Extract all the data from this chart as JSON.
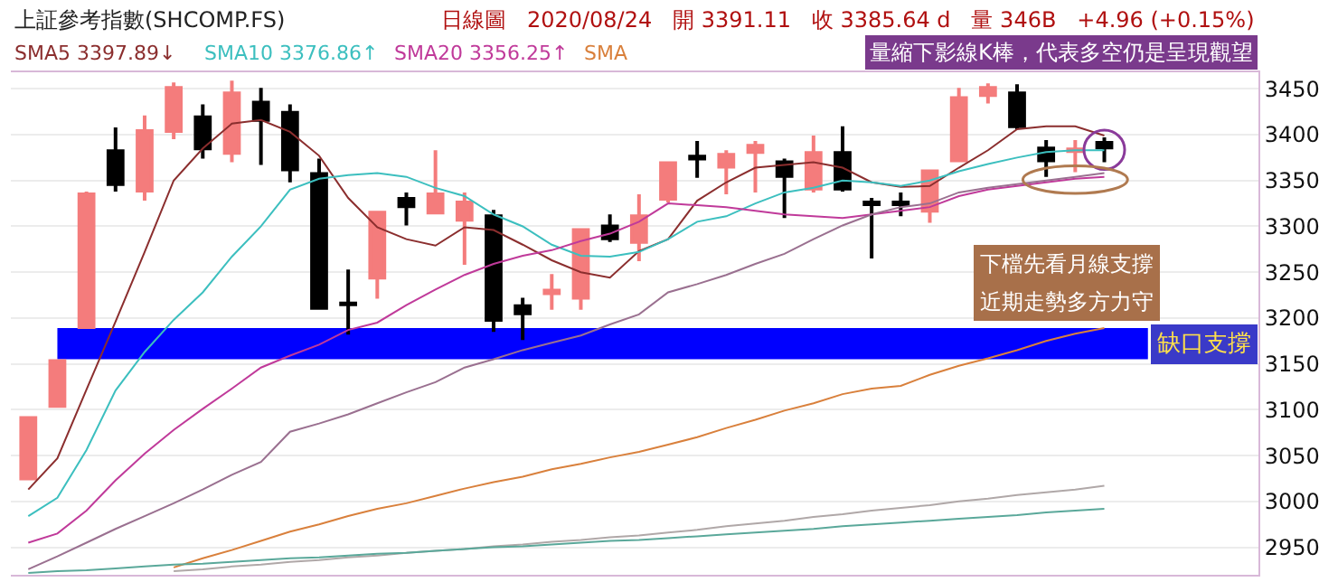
{
  "chart_data": {
    "type": "candlestick",
    "title": "上証參考指數(SHCOMP.FS)",
    "subtitle": "日線圖   2020/08/24   開 3391.11   收 3385.64 d   量 346B   +4.96 (+0.15%)",
    "categories": [
      null,
      null,
      null,
      null,
      null,
      null,
      null,
      null,
      null,
      null,
      null,
      null,
      null,
      null,
      null,
      null,
      null,
      null,
      null,
      null,
      null,
      null,
      null,
      null,
      null,
      null,
      null,
      null,
      null,
      null,
      null,
      null,
      null,
      null,
      null,
      null,
      null,
      null
    ],
    "ohlc": [
      [
        3025,
        3092,
        3024,
        3091
      ],
      [
        3104,
        3154,
        3103,
        3153
      ],
      [
        3190,
        3338,
        3189,
        3335
      ],
      [
        3382,
        3408,
        3338,
        3346
      ],
      [
        3339,
        3421,
        3328,
        3404
      ],
      [
        3404,
        3457,
        3395,
        3451
      ],
      [
        3419,
        3433,
        3374,
        3385
      ],
      [
        3380,
        3459,
        3370,
        3445
      ],
      [
        3435,
        3451,
        3367,
        3416
      ],
      [
        3424,
        3433,
        3348,
        3362
      ],
      [
        3357,
        3374,
        3210,
        3211
      ],
      [
        3216,
        3253,
        3182,
        3215
      ],
      [
        3244,
        3316,
        3221,
        3315
      ],
      [
        3330,
        3337,
        3301,
        3322
      ],
      [
        3315,
        3383,
        3313,
        3335
      ],
      [
        3307,
        3337,
        3258,
        3326
      ],
      [
        3311,
        3318,
        3185,
        3198
      ],
      [
        3213,
        3222,
        3176,
        3205
      ],
      [
        3227,
        3248,
        3209,
        3230
      ],
      [
        3222,
        3297,
        3209,
        3296
      ],
      [
        3300,
        3313,
        3283,
        3287
      ],
      [
        3283,
        3335,
        3262,
        3311
      ],
      [
        3330,
        3370,
        3326,
        3369
      ],
      [
        3376,
        3393,
        3353,
        3374
      ],
      [
        3365,
        3383,
        3335,
        3378
      ],
      [
        3381,
        3393,
        3337,
        3388
      ],
      [
        3370,
        3374,
        3309,
        3355
      ],
      [
        3341,
        3399,
        3337,
        3380
      ],
      [
        3380,
        3409,
        3338,
        3341
      ],
      [
        3326,
        3331,
        3265,
        3324
      ],
      [
        3326,
        3337,
        3311,
        3324
      ],
      [
        3317,
        3362,
        3304,
        3360
      ],
      [
        3372,
        3451,
        3370,
        3440
      ],
      [
        3443,
        3456,
        3434,
        3451
      ],
      [
        3445,
        3455,
        3406,
        3409
      ],
      [
        3385,
        3394,
        3354,
        3372
      ],
      [
        3382,
        3394,
        3359,
        3384
      ],
      [
        3391,
        3397,
        3370,
        3386
      ]
    ],
    "colors": [
      "#f47c7c",
      "#f47c7c",
      "#f47c7c",
      "#000000",
      "#f47c7c",
      "#f47c7c",
      "#000000",
      "#f47c7c",
      "#000000",
      "#000000",
      "#000000",
      "#000000",
      "#f47c7c",
      "#000000",
      "#f47c7c",
      "#f47c7c",
      "#000000",
      "#000000",
      "#f47c7c",
      "#f47c7c",
      "#000000",
      "#f47c7c",
      "#f47c7c",
      "#000000",
      "#f47c7c",
      "#f47c7c",
      "#000000",
      "#f47c7c",
      "#000000",
      "#000000",
      "#000000",
      "#f47c7c",
      "#f47c7c",
      "#f47c7c",
      "#000000",
      "#000000",
      "#f47c7c",
      "#000000"
    ],
    "series": [
      {
        "type": "line",
        "name": "SMA5 3397.89↓",
        "color": "#8b2e2e",
        "values": [
          3013,
          3047,
          3122,
          3196,
          3272,
          3350,
          3385,
          3412,
          3416,
          3403,
          3377,
          3331,
          3299,
          3286,
          3279,
          3299,
          3296,
          3280,
          3263,
          3250,
          3244,
          3273,
          3286,
          3328,
          3348,
          3364,
          3367,
          3370,
          3364,
          3348,
          3343,
          3344,
          3364,
          3383,
          3406,
          3409,
          3409,
          3399
        ]
      },
      {
        "type": "line",
        "name": "SMA10 3376.86↑",
        "color": "#3cbfbf",
        "values": [
          2984,
          3004,
          3056,
          3121,
          3163,
          3198,
          3228,
          3267,
          3300,
          3340,
          3352,
          3356,
          3358,
          3354,
          3342,
          3333,
          3313,
          3300,
          3280,
          3268,
          3267,
          3272,
          3286,
          3305,
          3311,
          3325,
          3337,
          3342,
          3350,
          3348,
          3344,
          3350,
          3360,
          3368,
          3375,
          3381,
          3383,
          3383
        ]
      },
      {
        "type": "line",
        "name": "SMA20 3356.25↑",
        "color": "#c03a9a",
        "values": [
          2955,
          2965,
          2990,
          3023,
          3052,
          3078,
          3101,
          3123,
          3146,
          3159,
          3171,
          3187,
          3195,
          3214,
          3231,
          3247,
          3259,
          3268,
          3274,
          3284,
          3292,
          3305,
          3325,
          3323,
          3321,
          3317,
          3313,
          3311,
          3309,
          3313,
          3317,
          3321,
          3333,
          3340,
          3344,
          3348,
          3352,
          3354
        ]
      },
      {
        "type": "line",
        "name": "SMA",
        "color": "#d9803c",
        "values": [
          null,
          null,
          null,
          null,
          null,
          2928,
          2938,
          2947,
          2957,
          2967,
          2975,
          2984,
          2992,
          2998,
          3006,
          3014,
          3021,
          3027,
          3035,
          3041,
          3048,
          3054,
          3062,
          3070,
          3080,
          3089,
          3099,
          3107,
          3117,
          3123,
          3126,
          3138,
          3148,
          3156,
          3165,
          3175,
          3183,
          3189
        ]
      },
      {
        "type": "line",
        "color": "#9a7090",
        "values": [
          2926,
          2940,
          2955,
          2970,
          2984,
          2998,
          3013,
          3029,
          3043,
          3076,
          3085,
          3095,
          3107,
          3119,
          3130,
          3146,
          3155,
          3165,
          3173,
          3181,
          3193,
          3204,
          3228,
          3237,
          3247,
          3259,
          3270,
          3286,
          3301,
          3313,
          3321,
          3325,
          3337,
          3342,
          3346,
          3350,
          3354,
          3358
        ]
      },
      {
        "type": "line",
        "color": "#b0a8a8",
        "values": [
          null,
          null,
          null,
          null,
          null,
          2924,
          2926,
          2929,
          2931,
          2934,
          2936,
          2939,
          2941,
          2944,
          2946,
          2948,
          2951,
          2953,
          2956,
          2958,
          2961,
          2963,
          2966,
          2969,
          2973,
          2976,
          2979,
          2983,
          2986,
          2990,
          2993,
          2996,
          3000,
          3003,
          3007,
          3010,
          3013,
          3017
        ]
      },
      {
        "type": "line",
        "color": "#5aa89a",
        "values": [
          2922,
          2924,
          2925,
          2927,
          2929,
          2931,
          2932,
          2934,
          2936,
          2938,
          2939,
          2941,
          2943,
          2944,
          2946,
          2948,
          2950,
          2951,
          2953,
          2955,
          2957,
          2958,
          2960,
          2962,
          2964,
          2966,
          2968,
          2970,
          2973,
          2975,
          2977,
          2979,
          2981,
          2983,
          2985,
          2988,
          2990,
          2992
        ]
      }
    ],
    "bands": [
      {
        "axis": "y",
        "from": 3155,
        "to": 3189,
        "label": "缺口支撐",
        "color": "#0000ff"
      }
    ],
    "annotations": [
      "量縮下影線K棒，代表多空仍是呈現觀望",
      "下檔先看月線支撐",
      "近期走勢多方力守"
    ],
    "ylim": [
      2920,
      3468
    ],
    "yticks": [
      2950,
      3000,
      3050,
      3100,
      3150,
      3200,
      3250,
      3300,
      3350,
      3400,
      3450
    ],
    "grid": "y",
    "line_style": "solid",
    "marker": "none"
  }
}
